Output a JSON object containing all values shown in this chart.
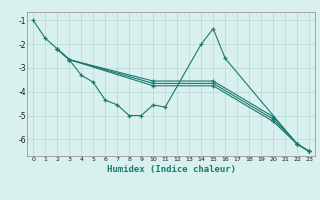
{
  "xlabel": "Humidex (Indice chaleur)",
  "background_color": "#d8f0ee",
  "line_color": "#1a7a6e",
  "grid_color": "#b8d8d4",
  "xlim": [
    -0.5,
    23.5
  ],
  "ylim": [
    -6.7,
    -0.65
  ],
  "yticks": [
    -6,
    -5,
    -4,
    -3,
    -2,
    -1
  ],
  "xticks": [
    0,
    1,
    2,
    3,
    4,
    5,
    6,
    7,
    8,
    9,
    10,
    11,
    12,
    13,
    14,
    15,
    16,
    17,
    18,
    19,
    20,
    21,
    22,
    23
  ],
  "series": [
    {
      "x": [
        0,
        1,
        2,
        3,
        4,
        5,
        6,
        7,
        8,
        9,
        10,
        11,
        14,
        15,
        16,
        22,
        23
      ],
      "y": [
        -1.0,
        -1.75,
        -2.2,
        -2.65,
        -3.3,
        -3.6,
        -4.35,
        -4.55,
        -5.0,
        -5.0,
        -4.55,
        -4.65,
        -2.0,
        -1.35,
        -2.6,
        -6.2,
        -6.5
      ]
    },
    {
      "x": [
        2,
        3,
        10,
        15,
        20,
        22,
        23
      ],
      "y": [
        -2.2,
        -2.65,
        -3.55,
        -3.55,
        -5.05,
        -6.2,
        -6.5
      ]
    },
    {
      "x": [
        2,
        3,
        10,
        15,
        20,
        22,
        23
      ],
      "y": [
        -2.2,
        -2.65,
        -3.65,
        -3.65,
        -5.15,
        -6.2,
        -6.5
      ]
    },
    {
      "x": [
        2,
        3,
        10,
        15,
        20,
        22,
        23
      ],
      "y": [
        -2.2,
        -2.65,
        -3.75,
        -3.75,
        -5.25,
        -6.2,
        -6.5
      ]
    }
  ]
}
